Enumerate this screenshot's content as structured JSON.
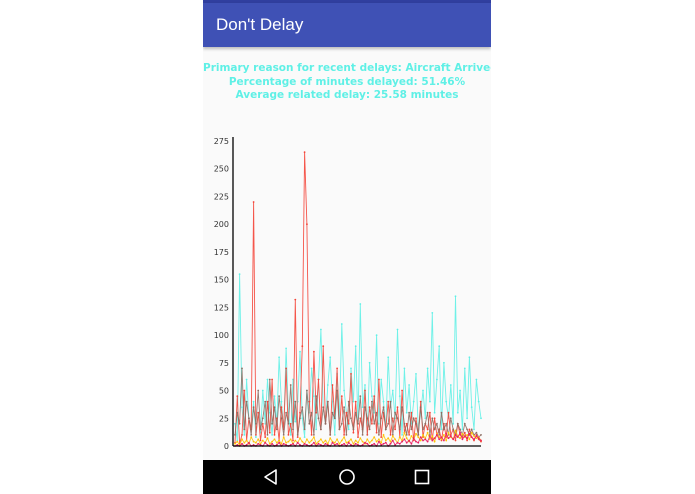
{
  "app": {
    "title": "Don't Delay"
  },
  "stats": {
    "primary_reason": "Primary reason for recent delays: Aircraft Arrived Late",
    "percentage_delayed": "Percentage of minutes delayed: 51.46%",
    "average_delay": "Average related delay: 25.58 minutes"
  },
  "navigation": {
    "icons": [
      "back-icon",
      "home-icon",
      "recents-icon"
    ]
  },
  "chart_data": {
    "type": "line",
    "title": "",
    "xlabel": "",
    "ylabel": "",
    "ylim": [
      0,
      275
    ],
    "yticks": [
      0,
      25,
      50,
      75,
      100,
      125,
      150,
      175,
      200,
      225,
      250,
      275
    ],
    "grid": false,
    "legend": "none",
    "series": [
      {
        "color": "#5ff0e6",
        "values": [
          20,
          5,
          155,
          35,
          10,
          60,
          25,
          15,
          40,
          8,
          30,
          12,
          50,
          20,
          60,
          30,
          10,
          45,
          20,
          80,
          40,
          15,
          88,
          30,
          10,
          60,
          22,
          40,
          85,
          25,
          8,
          50,
          30,
          70,
          45,
          15,
          60,
          105,
          35,
          20,
          55,
          80,
          40,
          10,
          65,
          25,
          110,
          50,
          30,
          15,
          70,
          40,
          90,
          20,
          128,
          35,
          55,
          10,
          75,
          45,
          30,
          100,
          20,
          60,
          40,
          15,
          80,
          35,
          50,
          25,
          105,
          45,
          10,
          70,
          30,
          55,
          20,
          40,
          65,
          15,
          30,
          50,
          25,
          70,
          40,
          120,
          30,
          60,
          90,
          15,
          75,
          40,
          25,
          55,
          20,
          135,
          30,
          50,
          15,
          70,
          25,
          80,
          35,
          15,
          60,
          40,
          25
        ]
      },
      {
        "color": "#f44336",
        "values": [
          3,
          45,
          2,
          10,
          50,
          5,
          25,
          15,
          220,
          10,
          30,
          5,
          20,
          8,
          40,
          12,
          60,
          10,
          25,
          5,
          35,
          15,
          70,
          10,
          20,
          5,
          132,
          8,
          30,
          90,
          265,
          200,
          40,
          10,
          85,
          30,
          60,
          15,
          90,
          20,
          40,
          10,
          55,
          25,
          70,
          15,
          45,
          10,
          30,
          20,
          65,
          12,
          40,
          8,
          25,
          15,
          50,
          10,
          35,
          20,
          45,
          12,
          60,
          8,
          30,
          15,
          40,
          10,
          25,
          15,
          35,
          8,
          50,
          12,
          20,
          10,
          30,
          5,
          25,
          10,
          40,
          8,
          20,
          15,
          30,
          5,
          25,
          10,
          15,
          5,
          20,
          8,
          30,
          10,
          15,
          5,
          20,
          10,
          8,
          12,
          5,
          15,
          8,
          5,
          10,
          6,
          4
        ]
      },
      {
        "color": "#8d6e63",
        "values": [
          10,
          30,
          20,
          70,
          15,
          40,
          25,
          10,
          35,
          20,
          50,
          15,
          25,
          40,
          10,
          60,
          20,
          35,
          15,
          45,
          25,
          10,
          30,
          20,
          55,
          15,
          40,
          10,
          25,
          35,
          15,
          50,
          20,
          30,
          10,
          45,
          25,
          15,
          35,
          20,
          40,
          10,
          30,
          25,
          50,
          15,
          20,
          35,
          10,
          40,
          25,
          15,
          30,
          20,
          45,
          10,
          35,
          25,
          15,
          40,
          20,
          30,
          10,
          25,
          35,
          15,
          20,
          40,
          10,
          30,
          25,
          15,
          35,
          20,
          10,
          30,
          15,
          25,
          20,
          10,
          35,
          15,
          20,
          30,
          10,
          25,
          15,
          20,
          10,
          30,
          15,
          20,
          10,
          25,
          15,
          10,
          20,
          15,
          10,
          20,
          15,
          10,
          15,
          10,
          12,
          8,
          10
        ]
      },
      {
        "color": "#ffc107",
        "values": [
          2,
          4,
          1,
          6,
          3,
          5,
          2,
          8,
          4,
          3,
          6,
          2,
          5,
          3,
          7,
          2,
          4,
          6,
          3,
          5,
          2,
          8,
          3,
          4,
          6,
          2,
          5,
          3,
          7,
          4,
          2,
          6,
          3,
          5,
          8,
          2,
          4,
          6,
          3,
          5,
          2,
          7,
          4,
          3,
          6,
          2,
          5,
          8,
          3,
          4,
          6,
          2,
          5,
          3,
          7,
          4,
          2,
          6,
          3,
          5,
          8,
          4,
          6,
          3,
          10,
          5,
          7,
          4,
          9,
          6,
          3,
          8,
          5,
          12,
          7,
          4,
          9,
          6,
          11,
          8,
          5,
          10,
          7,
          12,
          6,
          9,
          4,
          11,
          8,
          6,
          10,
          5,
          12,
          8,
          6,
          14,
          9,
          7,
          11,
          8,
          10,
          6,
          12,
          9,
          7,
          8,
          5
        ]
      },
      {
        "color": "#e91e63",
        "values": [
          0,
          1,
          0,
          2,
          0,
          1,
          3,
          0,
          1,
          0,
          2,
          1,
          0,
          3,
          1,
          0,
          2,
          0,
          1,
          3,
          0,
          2,
          1,
          0,
          1,
          2,
          0,
          3,
          1,
          0,
          2,
          1,
          0,
          1,
          3,
          0,
          2,
          1,
          0,
          2,
          1,
          0,
          3,
          1,
          2,
          0,
          1,
          2,
          0,
          3,
          1,
          0,
          2,
          1,
          0,
          1,
          3,
          2,
          0,
          1,
          2,
          0,
          4,
          1,
          2,
          3,
          0,
          2,
          5,
          1,
          3,
          2,
          4,
          6,
          3,
          5,
          2,
          7,
          4,
          3,
          8,
          5,
          6,
          4,
          9,
          5,
          7,
          10,
          6,
          8,
          5,
          11,
          7,
          9,
          6,
          10,
          8,
          12,
          6,
          9,
          7,
          11,
          8,
          6,
          9,
          7,
          5
        ]
      }
    ]
  }
}
